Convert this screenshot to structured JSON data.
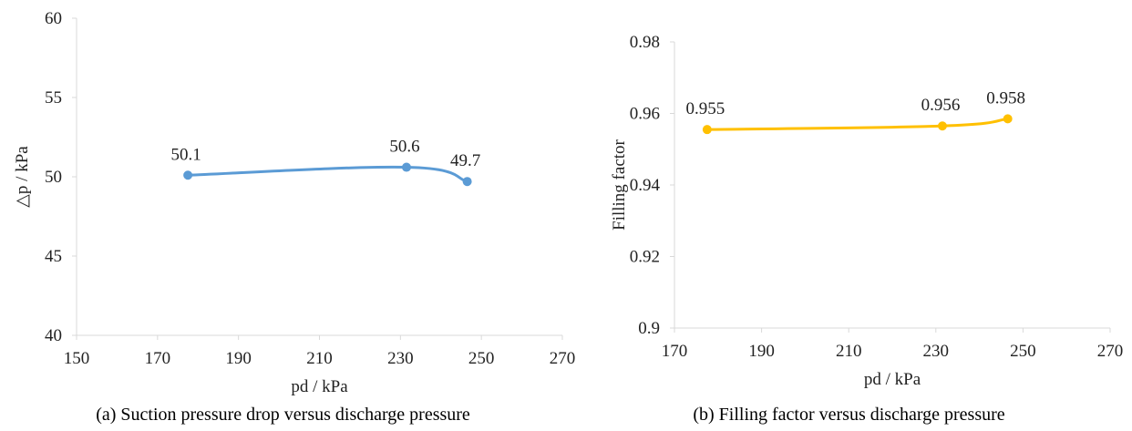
{
  "chart_data": [
    {
      "type": "line",
      "title": "",
      "caption": "(a) Suction pressure drop versus discharge pressure",
      "xlabel": "pd / kPa",
      "ylabel": "△p / kPa",
      "xlim": [
        150,
        270
      ],
      "ylim": [
        40,
        60
      ],
      "xticks": [
        150,
        170,
        190,
        210,
        230,
        250,
        270
      ],
      "yticks": [
        40,
        45,
        50,
        55,
        60
      ],
      "grid": false,
      "color": "#5b9bd5",
      "series": [
        {
          "x": [
            177.5,
            231.5,
            246.5
          ],
          "y": [
            50.1,
            50.6,
            49.7
          ],
          "labels": [
            "50.1",
            "50.6",
            "49.7"
          ]
        }
      ]
    },
    {
      "type": "line",
      "title": "",
      "caption": "(b) Filling factor versus discharge pressure",
      "xlabel": "pd / kPa",
      "ylabel": "Filling factor",
      "xlim": [
        170,
        270
      ],
      "ylim": [
        0.9,
        0.98
      ],
      "xticks": [
        170,
        190,
        210,
        230,
        250,
        270
      ],
      "yticks": [
        0.9,
        0.92,
        0.94,
        0.96,
        0.98
      ],
      "ytick_labels": [
        "0.9",
        "0.92",
        "0.94",
        "0.96",
        "0.98"
      ],
      "grid": false,
      "color": "#ffc000",
      "series": [
        {
          "x": [
            177.5,
            231.5,
            246.5
          ],
          "y": [
            0.9555,
            0.9565,
            0.9585
          ],
          "labels": [
            "0.955",
            "0.956",
            "0.958"
          ]
        }
      ]
    }
  ]
}
